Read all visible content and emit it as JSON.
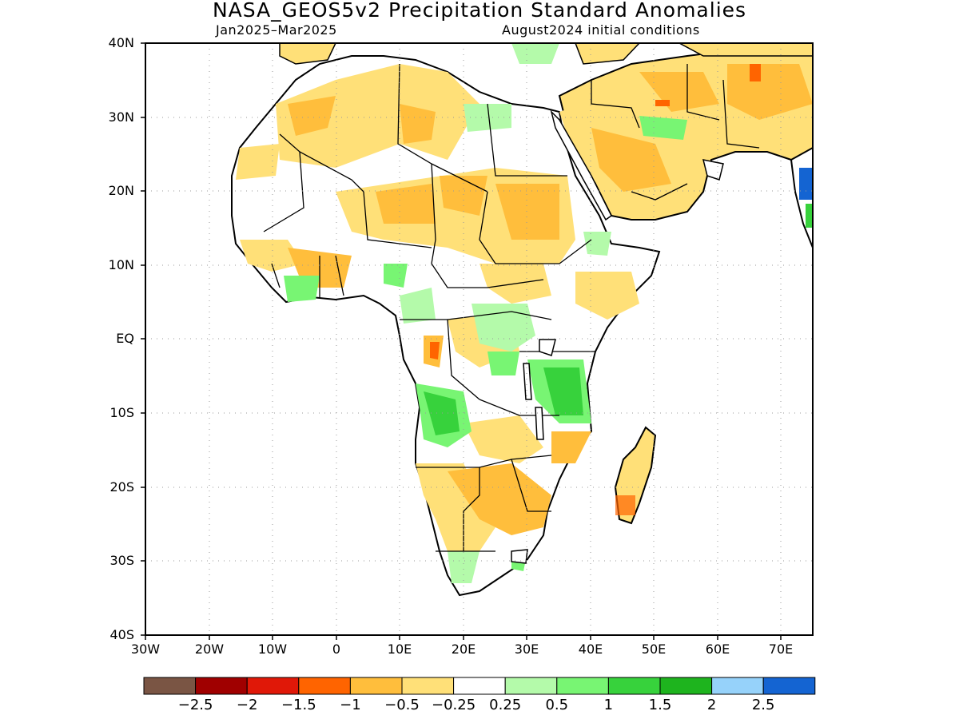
{
  "title": "NASA_GEOS5v2 Precipitation Standard Anomalies",
  "subtitle_left": "Jan2025–Mar2025",
  "subtitle_right": "August2024 initial conditions",
  "map": {
    "region": "Africa",
    "lat_labels": [
      "40N",
      "30N",
      "20N",
      "10N",
      "EQ",
      "10S",
      "20S",
      "30S",
      "40S"
    ],
    "lon_labels": [
      "30W",
      "20W",
      "10W",
      "0",
      "10E",
      "20E",
      "30E",
      "40E",
      "50E",
      "60E",
      "70E"
    ],
    "lat_range": [
      -40,
      40
    ],
    "lon_range": [
      -30,
      75
    ]
  },
  "colorbar": {
    "colors": [
      "#7a5544",
      "#a00000",
      "#e01808",
      "#ff6400",
      "#ffbe3c",
      "#ffe078",
      "#ffffff",
      "#b4faaa",
      "#78f573",
      "#37d23c",
      "#1eb41e",
      "#96d2fa",
      "#1464d2"
    ],
    "labels": [
      "−2.5",
      "−2",
      "−1.5",
      "−1",
      "−0.5",
      "−0.25",
      "0.25",
      "0.5",
      "1",
      "1.5",
      "2",
      "2.5"
    ]
  }
}
